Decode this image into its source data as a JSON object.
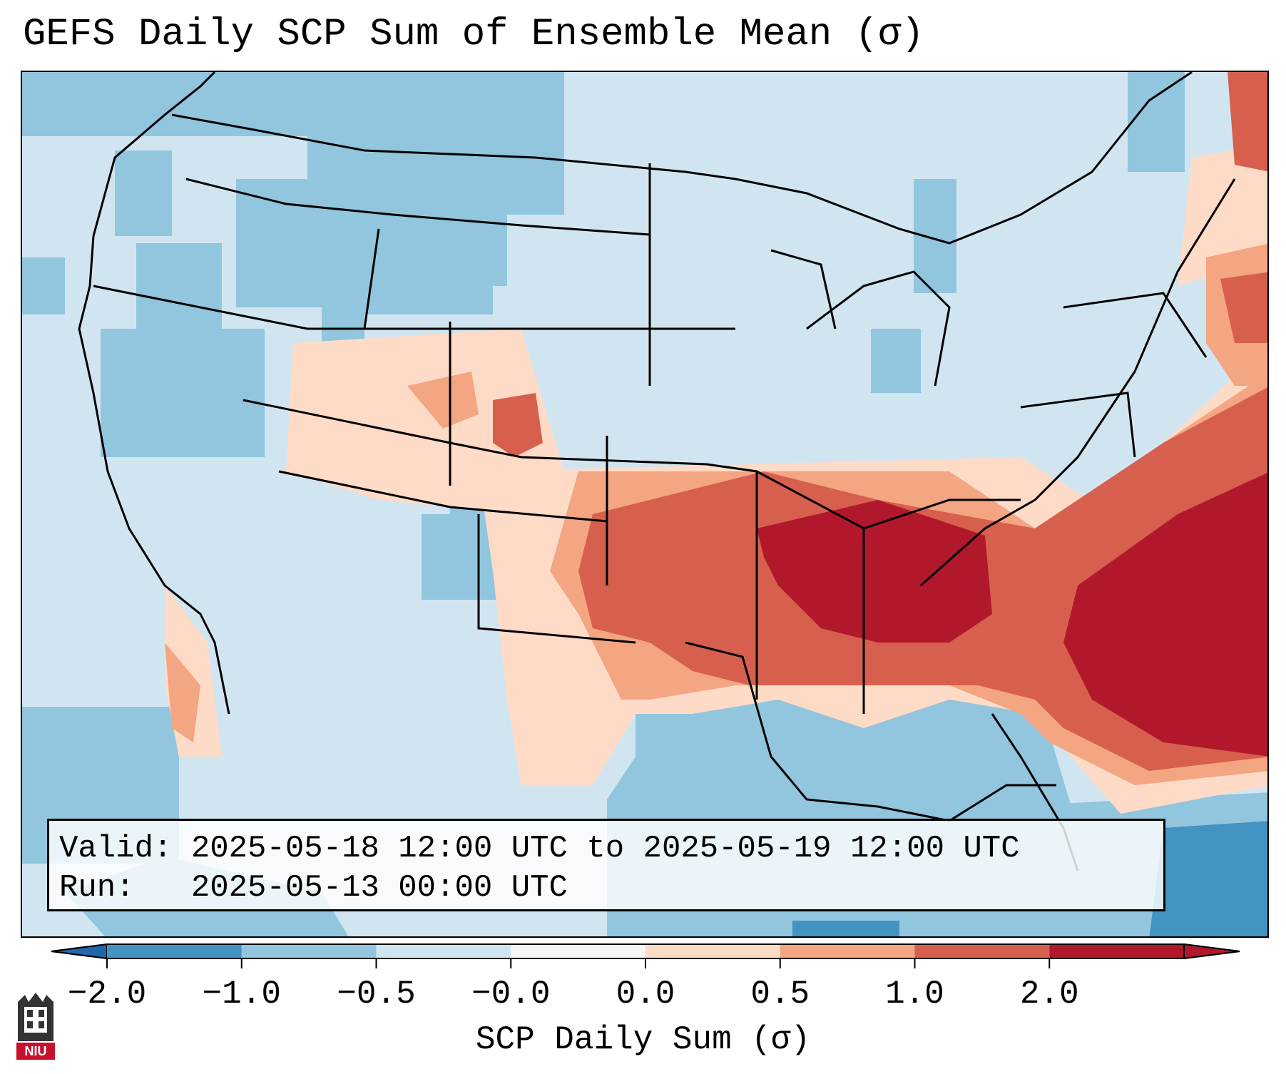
{
  "title": "GEFS Daily SCP Sum of Ensemble Mean (σ)",
  "info": {
    "valid_line": "Valid: 2025-05-18 12:00 UTC to 2025-05-19 12:00 UTC",
    "run_line": "Run:   2025-05-13 00:00 UTC"
  },
  "colorbar": {
    "label": "SCP Daily Sum (σ)",
    "ticks": [
      "−2.0",
      "−1.0",
      "−0.5",
      "−0.0",
      "0.0",
      "0.5",
      "1.0",
      "2.0"
    ],
    "colors": [
      "#4393c3",
      "#92c5de",
      "#d1e5f0",
      "#f7f7f7",
      "#fddbc7",
      "#f4a582",
      "#d6604d",
      "#b2182b"
    ],
    "under_color": "#2166ac",
    "over_color": "#b2182b"
  },
  "map": {
    "background_color": "#d1e5f0",
    "ocean_low_color": "#92c5de",
    "deep_color": "#4393c3",
    "high_colors": [
      "#fddbc7",
      "#f4a582",
      "#d6604d",
      "#b2182b"
    ]
  },
  "logo": {
    "text": "NIU"
  }
}
